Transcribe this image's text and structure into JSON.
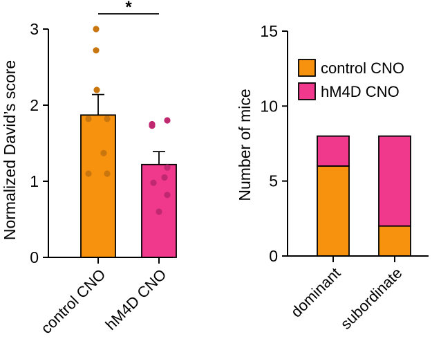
{
  "chart_data": [
    {
      "type": "bar",
      "ylabel": "Normalized David’s score",
      "ylim": [
        0,
        3
      ],
      "yticks": [
        0,
        1,
        2,
        3
      ],
      "categories": [
        "control CNO",
        "hM4D CNO"
      ],
      "values": [
        1.87,
        1.22
      ],
      "errors": [
        0.27,
        0.17
      ],
      "colors": [
        "#F7920E",
        "#F0388C"
      ],
      "dot_colors": [
        "#C9760F",
        "#C02870"
      ],
      "points": [
        [
          3.0,
          2.72,
          2.2,
          1.82,
          1.82,
          1.37,
          1.1,
          1.1
        ],
        [
          1.8,
          1.75,
          1.73,
          1.18,
          1.05,
          0.98,
          0.82,
          0.6
        ]
      ],
      "significance": "*"
    },
    {
      "type": "bar",
      "stacked": true,
      "ylabel": "Number of mice",
      "ylim": [
        0,
        15
      ],
      "yticks": [
        0,
        5,
        10,
        15
      ],
      "categories": [
        "dominant",
        "subordinate"
      ],
      "series": [
        {
          "name": "control CNO",
          "values": [
            6,
            2
          ],
          "color": "#F7920E"
        },
        {
          "name": "hM4D CNO",
          "values": [
            2,
            6
          ],
          "color": "#F0388C"
        }
      ],
      "legend": "top-right"
    }
  ]
}
